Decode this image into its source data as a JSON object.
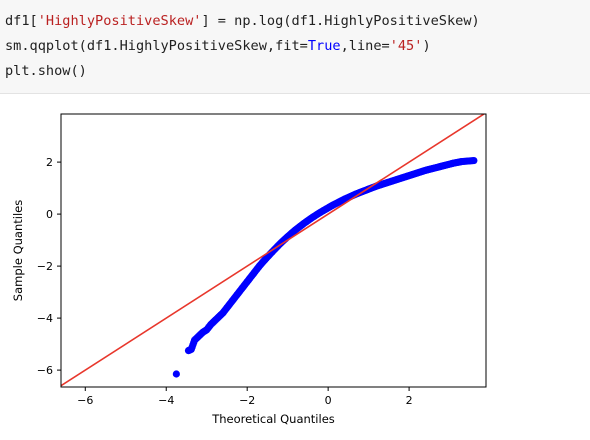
{
  "code": {
    "line1": {
      "a": "df1[",
      "b": "'HighlyPositiveSkew'",
      "c": "] = np.log(df1.HighlyPositiveSkew)"
    },
    "line2": {
      "a": "sm.qqplot(df1.HighlyPositiveSkew,fit=",
      "b": "True",
      "c": ",line=",
      "d": "'45'",
      "e": ")"
    },
    "line3": {
      "a": "plt.show()"
    }
  },
  "colors": {
    "points": "#0000ff",
    "reference_line": "#e8372c",
    "string": "#ba2121",
    "keyword": "#0000ff"
  },
  "chart_data": {
    "type": "scatter",
    "title": "",
    "xlabel": "Theoretical Quantiles",
    "ylabel": "Sample Quantiles",
    "xlim": [
      -6.6,
      3.9
    ],
    "ylim": [
      -6.65,
      3.85
    ],
    "xticks": [
      -6,
      -4,
      -2,
      0,
      2
    ],
    "yticks": [
      2,
      0,
      -2,
      -4,
      -6
    ],
    "grid": false,
    "legend": "none",
    "reference_line": {
      "name": "45",
      "x": [
        -6.6,
        3.9
      ],
      "y": [
        -6.6,
        3.9
      ]
    },
    "series": [
      {
        "marker": "circle",
        "x": [
          -3.75,
          -3.45,
          -3.38,
          -3.3,
          -3.2,
          -3.1,
          -3.0,
          -2.9,
          -2.8,
          -2.7,
          -2.6,
          -2.5,
          -2.4,
          -2.3,
          -2.2,
          -2.1,
          -2.0,
          -1.9,
          -1.8,
          -1.7,
          -1.6,
          -1.5,
          -1.4,
          -1.3,
          -1.2,
          -1.1,
          -1.0,
          -0.9,
          -0.8,
          -0.7,
          -0.6,
          -0.5,
          -0.4,
          -0.3,
          -0.2,
          -0.1,
          0.0,
          0.1,
          0.2,
          0.3,
          0.4,
          0.5,
          0.6,
          0.7,
          0.8,
          0.9,
          1.0,
          1.1,
          1.2,
          1.3,
          1.4,
          1.5,
          1.6,
          1.7,
          1.8,
          1.9,
          2.0,
          2.1,
          2.2,
          2.3,
          2.4,
          2.5,
          2.6,
          2.7,
          2.8,
          2.9,
          3.0,
          3.1,
          3.2,
          3.3,
          3.45,
          3.6
        ],
        "y": [
          -6.15,
          -5.25,
          -5.2,
          -4.85,
          -4.7,
          -4.55,
          -4.45,
          -4.25,
          -4.1,
          -3.95,
          -3.8,
          -3.6,
          -3.4,
          -3.2,
          -3.0,
          -2.8,
          -2.6,
          -2.4,
          -2.2,
          -2.0,
          -1.82,
          -1.65,
          -1.48,
          -1.32,
          -1.16,
          -1.01,
          -0.87,
          -0.73,
          -0.6,
          -0.48,
          -0.36,
          -0.25,
          -0.14,
          -0.04,
          0.06,
          0.15,
          0.24,
          0.33,
          0.41,
          0.49,
          0.57,
          0.64,
          0.71,
          0.78,
          0.84,
          0.9,
          0.96,
          1.02,
          1.08,
          1.13,
          1.18,
          1.23,
          1.28,
          1.33,
          1.38,
          1.43,
          1.48,
          1.53,
          1.58,
          1.63,
          1.68,
          1.72,
          1.76,
          1.8,
          1.84,
          1.88,
          1.92,
          1.96,
          1.99,
          2.02,
          2.04,
          2.06
        ]
      }
    ]
  }
}
